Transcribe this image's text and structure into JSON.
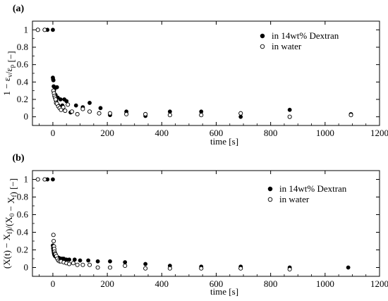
{
  "chart_data": [
    {
      "type": "scatter",
      "panel_label": "(a)",
      "xlabel": "time [s]",
      "ylabel": "1 − ε_v/ε_p [−]",
      "xlim": [
        -75,
        1200
      ],
      "ylim": [
        -0.1,
        1.1
      ],
      "x_ticks": [
        "0",
        "200",
        "400",
        "600",
        "800",
        "1000",
        "1200"
      ],
      "y_ticks": [
        "0",
        "0.2",
        "0.4",
        "0.6",
        "0.8",
        "1"
      ],
      "legend_position": "upper-right",
      "series": [
        {
          "name": "in 14wt% Dextran",
          "marker": "filled-circle",
          "color": "#000000",
          "points": [
            [
              -20,
              1.0
            ],
            [
              0,
              1.0
            ],
            [
              0,
              0.45
            ],
            [
              1,
              0.43
            ],
            [
              2,
              0.42
            ],
            [
              3,
              0.35
            ],
            [
              4,
              0.3
            ],
            [
              5,
              0.27
            ],
            [
              8,
              0.33
            ],
            [
              10,
              0.25
            ],
            [
              12,
              0.18
            ],
            [
              15,
              0.34
            ],
            [
              18,
              0.22
            ],
            [
              20,
              0.13
            ],
            [
              28,
              0.2
            ],
            [
              35,
              0.13
            ],
            [
              42,
              0.2
            ],
            [
              50,
              0.18
            ],
            [
              65,
              0.05
            ],
            [
              85,
              0.13
            ],
            [
              110,
              0.11
            ],
            [
              135,
              0.16
            ],
            [
              175,
              0.1
            ],
            [
              210,
              0.02
            ],
            [
              270,
              0.06
            ],
            [
              340,
              0.01
            ],
            [
              430,
              0.06
            ],
            [
              545,
              0.06
            ],
            [
              690,
              0.0
            ],
            [
              870,
              0.08
            ],
            [
              1095,
              0.03
            ]
          ]
        },
        {
          "name": "in water",
          "marker": "open-circle",
          "color": "#000000",
          "points": [
            [
              -55,
              1.0
            ],
            [
              -30,
              1.0
            ],
            [
              2,
              0.3
            ],
            [
              4,
              0.27
            ],
            [
              6,
              0.24
            ],
            [
              8,
              0.22
            ],
            [
              10,
              0.2
            ],
            [
              12,
              0.16
            ],
            [
              15,
              0.15
            ],
            [
              20,
              0.12
            ],
            [
              25,
              0.1
            ],
            [
              30,
              0.08
            ],
            [
              38,
              0.11
            ],
            [
              45,
              0.07
            ],
            [
              55,
              0.14
            ],
            [
              70,
              0.06
            ],
            [
              90,
              0.03
            ],
            [
              110,
              0.09
            ],
            [
              135,
              0.06
            ],
            [
              170,
              0.04
            ],
            [
              210,
              0.04
            ],
            [
              270,
              0.03
            ],
            [
              340,
              0.03
            ],
            [
              430,
              0.02
            ],
            [
              545,
              0.02
            ],
            [
              690,
              0.04
            ],
            [
              870,
              0.0
            ],
            [
              1095,
              0.02
            ]
          ]
        }
      ]
    },
    {
      "type": "scatter",
      "panel_label": "(b)",
      "xlabel": "time [s]",
      "ylabel": "(X(t) − X_f)/(X_0 − X_f) [−]",
      "xlim": [
        -75,
        1200
      ],
      "ylim": [
        -0.1,
        1.1
      ],
      "x_ticks": [
        "0",
        "200",
        "400",
        "600",
        "800",
        "1000",
        "1200"
      ],
      "y_ticks": [
        "0",
        "0.2",
        "0.4",
        "0.6",
        "0.8",
        "1"
      ],
      "legend_position": "upper-right",
      "series": [
        {
          "name": "in 14wt% Dextran",
          "marker": "filled-circle",
          "color": "#000000",
          "points": [
            [
              -20,
              1.0
            ],
            [
              0,
              1.0
            ],
            [
              0,
              0.25
            ],
            [
              1,
              0.22
            ],
            [
              2,
              0.2
            ],
            [
              3,
              0.18
            ],
            [
              4,
              0.16
            ],
            [
              5,
              0.15
            ],
            [
              6,
              0.14
            ],
            [
              8,
              0.13
            ],
            [
              10,
              0.13
            ],
            [
              12,
              0.12
            ],
            [
              15,
              0.12
            ],
            [
              18,
              0.11
            ],
            [
              22,
              0.11
            ],
            [
              26,
              0.1
            ],
            [
              30,
              0.1
            ],
            [
              35,
              0.1
            ],
            [
              40,
              0.1
            ],
            [
              50,
              0.09
            ],
            [
              60,
              0.09
            ],
            [
              80,
              0.09
            ],
            [
              100,
              0.08
            ],
            [
              130,
              0.08
            ],
            [
              165,
              0.07
            ],
            [
              210,
              0.07
            ],
            [
              265,
              0.06
            ],
            [
              340,
              0.04
            ],
            [
              430,
              0.02
            ],
            [
              545,
              0.01
            ],
            [
              690,
              0.01
            ],
            [
              870,
              0.0
            ],
            [
              1085,
              0.0
            ]
          ]
        },
        {
          "name": "in water",
          "marker": "open-circle",
          "color": "#000000",
          "points": [
            [
              -55,
              1.0
            ],
            [
              -30,
              1.0
            ],
            [
              2,
              0.37
            ],
            [
              3,
              0.3
            ],
            [
              4,
              0.24
            ],
            [
              5,
              0.21
            ],
            [
              6,
              0.18
            ],
            [
              8,
              0.16
            ],
            [
              10,
              0.15
            ],
            [
              13,
              0.13
            ],
            [
              16,
              0.1
            ],
            [
              20,
              0.08
            ],
            [
              25,
              0.07
            ],
            [
              30,
              0.07
            ],
            [
              40,
              0.06
            ],
            [
              50,
              0.05
            ],
            [
              60,
              0.04
            ],
            [
              75,
              0.05
            ],
            [
              90,
              0.03
            ],
            [
              110,
              0.03
            ],
            [
              135,
              0.03
            ],
            [
              165,
              0.0
            ],
            [
              210,
              0.0
            ],
            [
              265,
              0.02
            ],
            [
              340,
              -0.01
            ],
            [
              430,
              -0.01
            ],
            [
              545,
              -0.01
            ],
            [
              690,
              -0.01
            ],
            [
              870,
              -0.02
            ]
          ]
        }
      ]
    }
  ]
}
